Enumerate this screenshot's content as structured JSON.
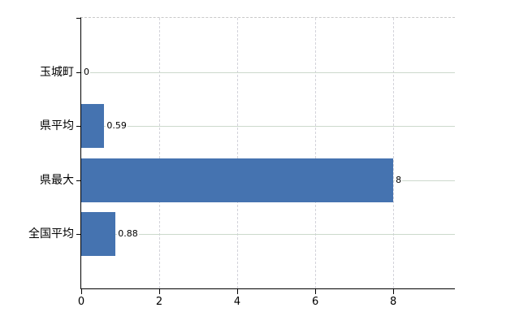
{
  "chart_data": {
    "type": "bar",
    "orientation": "horizontal",
    "categories": [
      "玉城町",
      "県平均",
      "県最大",
      "全国平均"
    ],
    "values": [
      0,
      0.59,
      8,
      0.88
    ],
    "value_labels": [
      "0",
      "0.59",
      "8",
      "0.88"
    ],
    "x_ticks": [
      0,
      2,
      4,
      6,
      8
    ],
    "x_tick_labels": [
      "0",
      "2",
      "4",
      "6",
      "8"
    ],
    "xlim": [
      0,
      9.58
    ],
    "grid": true,
    "legend_position": "none",
    "bar_thickness_px": 54,
    "colors": {
      "bar": "#4573b0",
      "h_grid": "#ccd9cc",
      "v_grid": "#d3d3da",
      "axis": "#000000",
      "top_border": "#c9c9c9",
      "text": "#000000",
      "background": "#ffffff"
    }
  }
}
